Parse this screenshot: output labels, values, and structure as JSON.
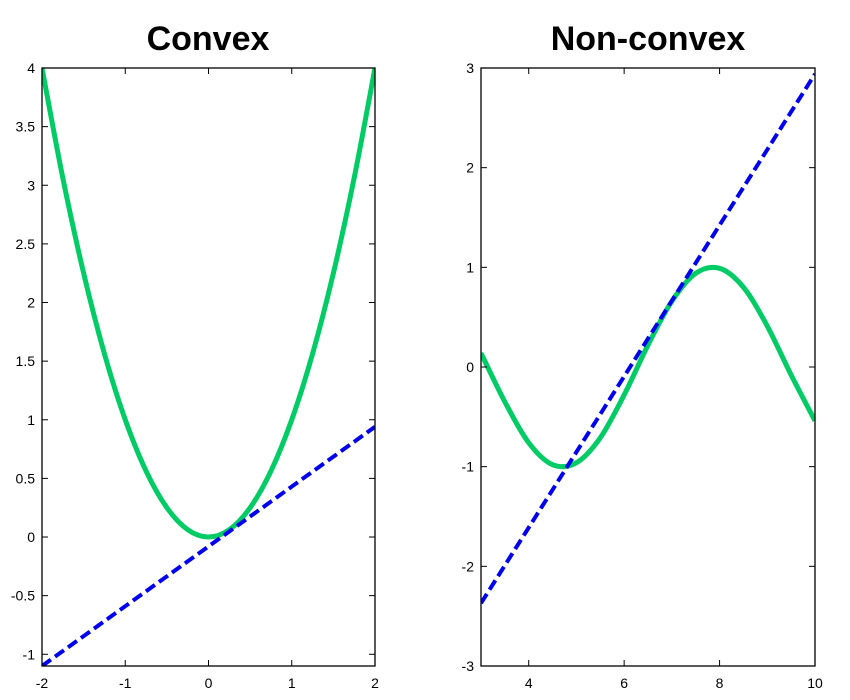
{
  "chart_data": [
    {
      "type": "line",
      "title": "Convex",
      "xlabel": "",
      "ylabel": "",
      "xlim": [
        -2,
        2
      ],
      "ylim": [
        -1.1,
        4
      ],
      "xticks": [
        -2,
        -1,
        0,
        1,
        2
      ],
      "xtick_labels": [
        "-2",
        "-1",
        "0",
        "1",
        "2"
      ],
      "yticks": [
        -1,
        -0.5,
        0,
        0.5,
        1,
        1.5,
        2,
        2.5,
        3,
        3.5,
        4
      ],
      "ytick_labels": [
        "-1",
        "-0.5",
        "0",
        "0.5",
        "1",
        "1.5",
        "2",
        "2.5",
        "3",
        "3.5",
        "4"
      ],
      "grid": false,
      "series": [
        {
          "style": "solid",
          "color": "#00cc66",
          "x": [
            -2,
            -1.75,
            -1.5,
            -1.25,
            -1,
            -0.75,
            -0.5,
            -0.25,
            0,
            0.25,
            0.5,
            0.75,
            1,
            1.25,
            1.5,
            1.75,
            2
          ],
          "y": [
            4,
            3.0625,
            2.25,
            1.5625,
            1,
            0.5625,
            0.25,
            0.0625,
            0,
            0.0625,
            0.25,
            0.5625,
            1,
            1.5625,
            2.25,
            3.0625,
            4
          ]
        },
        {
          "style": "dashed",
          "color": "#0000ee",
          "x": [
            -2,
            2
          ],
          "y": [
            -1.1,
            0.94
          ]
        }
      ]
    },
    {
      "type": "line",
      "title": "Non-convex",
      "xlabel": "",
      "ylabel": "",
      "xlim": [
        3,
        10
      ],
      "ylim": [
        -3,
        3
      ],
      "xticks": [
        4,
        6,
        8,
        10
      ],
      "xtick_labels": [
        "4",
        "6",
        "8",
        "10"
      ],
      "yticks": [
        -3,
        -2,
        -1,
        0,
        1,
        2,
        3
      ],
      "ytick_labels": [
        "-3",
        "-2",
        "-1",
        "0",
        "1",
        "2",
        "3"
      ],
      "grid": false,
      "series": [
        {
          "style": "solid",
          "color": "#00cc66",
          "x": [
            3,
            3.5,
            4,
            4.5,
            5,
            5.5,
            6,
            6.5,
            7,
            7.5,
            8,
            8.5,
            9,
            9.5,
            10
          ],
          "y": [
            0.14,
            -0.35,
            -0.76,
            -0.98,
            -0.96,
            -0.71,
            -0.28,
            0.22,
            0.66,
            0.94,
            0.99,
            0.8,
            0.41,
            -0.08,
            -0.54
          ]
        },
        {
          "style": "dashed",
          "color": "#0000ee",
          "x": [
            3,
            10
          ],
          "y": [
            -2.37,
            2.94
          ]
        }
      ]
    }
  ]
}
